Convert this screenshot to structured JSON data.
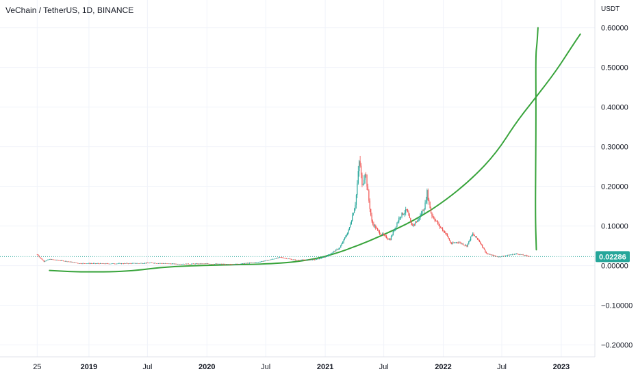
{
  "chart_data": {
    "type": "candlestick",
    "title": "VeChain / TetherUS, 1D, BINANCE",
    "price_axis_unit": "USDT",
    "current_price": "0.02286",
    "ylim": [
      -0.23,
      0.67
    ],
    "grid": true,
    "y_ticks": [
      {
        "value": 0.6,
        "label": "0.60000"
      },
      {
        "value": 0.5,
        "label": "0.50000"
      },
      {
        "value": 0.4,
        "label": "0.40000"
      },
      {
        "value": 0.3,
        "label": "0.30000"
      },
      {
        "value": 0.2,
        "label": "0.20000"
      },
      {
        "value": 0.1,
        "label": "0.10000"
      },
      {
        "value": 0.0,
        "label": "0.00000"
      },
      {
        "value": -0.1,
        "label": "−0.10000"
      },
      {
        "value": -0.2,
        "label": "−0.20000"
      }
    ],
    "x_ticks": [
      {
        "date": "2018-07-25",
        "label": "25",
        "bold": false
      },
      {
        "date": "2019-01-01",
        "label": "2019",
        "bold": true
      },
      {
        "date": "2019-07-01",
        "label": "Jul",
        "bold": false
      },
      {
        "date": "2020-01-01",
        "label": "2020",
        "bold": true
      },
      {
        "date": "2020-07-01",
        "label": "Jul",
        "bold": false
      },
      {
        "date": "2021-01-01",
        "label": "2021",
        "bold": true
      },
      {
        "date": "2021-07-01",
        "label": "Jul",
        "bold": false
      },
      {
        "date": "2022-01-01",
        "label": "2022",
        "bold": true
      },
      {
        "date": "2022-07-01",
        "label": "Jul",
        "bold": false
      },
      {
        "date": "2023-01-01",
        "label": "2023",
        "bold": true
      }
    ],
    "x_range": [
      "2018-04-01",
      "2023-04-15"
    ],
    "price_path": [
      [
        "2018-07-25",
        0.028
      ],
      [
        "2018-08-05",
        0.018
      ],
      [
        "2018-08-15",
        0.011
      ],
      [
        "2018-09-01",
        0.016
      ],
      [
        "2018-10-15",
        0.012
      ],
      [
        "2018-12-01",
        0.006
      ],
      [
        "2019-03-01",
        0.005
      ],
      [
        "2019-06-01",
        0.006
      ],
      [
        "2019-07-15",
        0.007
      ],
      [
        "2019-10-01",
        0.004
      ],
      [
        "2020-01-01",
        0.005
      ],
      [
        "2020-03-15",
        0.003
      ],
      [
        "2020-06-01",
        0.008
      ],
      [
        "2020-07-15",
        0.015
      ],
      [
        "2020-08-15",
        0.021
      ],
      [
        "2020-10-01",
        0.014
      ],
      [
        "2020-12-01",
        0.015
      ],
      [
        "2021-01-01",
        0.022
      ],
      [
        "2021-02-15",
        0.045
      ],
      [
        "2021-03-15",
        0.09
      ],
      [
        "2021-04-05",
        0.16
      ],
      [
        "2021-04-17",
        0.27
      ],
      [
        "2021-04-25",
        0.2
      ],
      [
        "2021-05-05",
        0.24
      ],
      [
        "2021-05-15",
        0.17
      ],
      [
        "2021-05-25",
        0.11
      ],
      [
        "2021-06-15",
        0.085
      ],
      [
        "2021-07-20",
        0.065
      ],
      [
        "2021-08-20",
        0.125
      ],
      [
        "2021-09-10",
        0.14
      ],
      [
        "2021-09-25",
        0.1
      ],
      [
        "2021-10-15",
        0.115
      ],
      [
        "2021-11-05",
        0.15
      ],
      [
        "2021-11-12",
        0.185
      ],
      [
        "2021-11-25",
        0.13
      ],
      [
        "2021-12-20",
        0.1
      ],
      [
        "2022-01-10",
        0.08
      ],
      [
        "2022-01-25",
        0.055
      ],
      [
        "2022-02-15",
        0.06
      ],
      [
        "2022-03-15",
        0.05
      ],
      [
        "2022-04-01",
        0.08
      ],
      [
        "2022-04-20",
        0.065
      ],
      [
        "2022-05-15",
        0.03
      ],
      [
        "2022-06-20",
        0.022
      ],
      [
        "2022-08-15",
        0.03
      ],
      [
        "2022-09-15",
        0.025
      ],
      [
        "2022-10-01",
        0.02286
      ]
    ],
    "annotations": [
      {
        "name": "baseline-curve",
        "color": "#37a33a",
        "points": [
          [
            "2018-09-01",
            -0.012
          ],
          [
            "2018-12-01",
            -0.016
          ],
          [
            "2019-05-01",
            -0.015
          ],
          [
            "2019-09-01",
            -0.002
          ],
          [
            "2020-03-01",
            0.002
          ],
          [
            "2020-07-01",
            0.004
          ],
          [
            "2020-10-01",
            0.009
          ],
          [
            "2021-01-01",
            0.022
          ],
          [
            "2021-04-01",
            0.047
          ],
          [
            "2021-07-01",
            0.078
          ],
          [
            "2021-10-01",
            0.113
          ],
          [
            "2022-01-01",
            0.16
          ],
          [
            "2022-04-01",
            0.22
          ],
          [
            "2022-06-15",
            0.285
          ],
          [
            "2022-08-15",
            0.362
          ],
          [
            "2022-10-15",
            0.425
          ],
          [
            "2022-12-15",
            0.49
          ],
          [
            "2023-02-01",
            0.55
          ],
          [
            "2023-03-01",
            0.584
          ]
        ]
      },
      {
        "name": "vertical-spike",
        "color": "#37a33a",
        "points": [
          [
            "2022-10-16",
            0.04
          ],
          [
            "2022-10-13",
            0.12
          ],
          [
            "2022-10-14",
            0.25
          ],
          [
            "2022-10-15",
            0.4
          ],
          [
            "2022-10-14",
            0.53
          ],
          [
            "2022-10-18",
            0.56
          ],
          [
            "2022-10-21",
            0.6
          ]
        ]
      }
    ]
  }
}
